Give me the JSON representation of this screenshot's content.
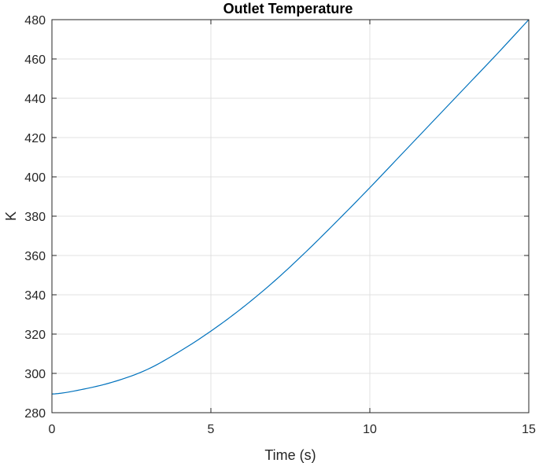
{
  "chart_data": {
    "type": "line",
    "title": "Outlet Temperature",
    "xlabel": "Time (s)",
    "ylabel": "K",
    "xlim": [
      0,
      15
    ],
    "ylim": [
      280,
      480
    ],
    "x_ticks": [
      0,
      5,
      10,
      15
    ],
    "x_tick_labels": [
      "0",
      "5",
      "10",
      "15"
    ],
    "y_ticks": [
      280,
      300,
      320,
      340,
      360,
      380,
      400,
      420,
      440,
      460,
      480
    ],
    "y_tick_labels": [
      "280",
      "300",
      "320",
      "340",
      "360",
      "380",
      "400",
      "420",
      "440",
      "460",
      "480"
    ],
    "grid": true,
    "colors": {
      "line": "#0072BD",
      "grid": "#e0e0e0",
      "axis": "#262626"
    },
    "series": [
      {
        "x": [
          0,
          1,
          2,
          3,
          4,
          5,
          6,
          7,
          8,
          9,
          10,
          11,
          12,
          13,
          14,
          15
        ],
        "y": [
          289.5,
          292,
          296,
          302,
          311,
          321.5,
          333.5,
          347,
          362,
          378,
          394.5,
          411.5,
          428.5,
          445.5,
          462.5,
          480
        ]
      }
    ]
  }
}
